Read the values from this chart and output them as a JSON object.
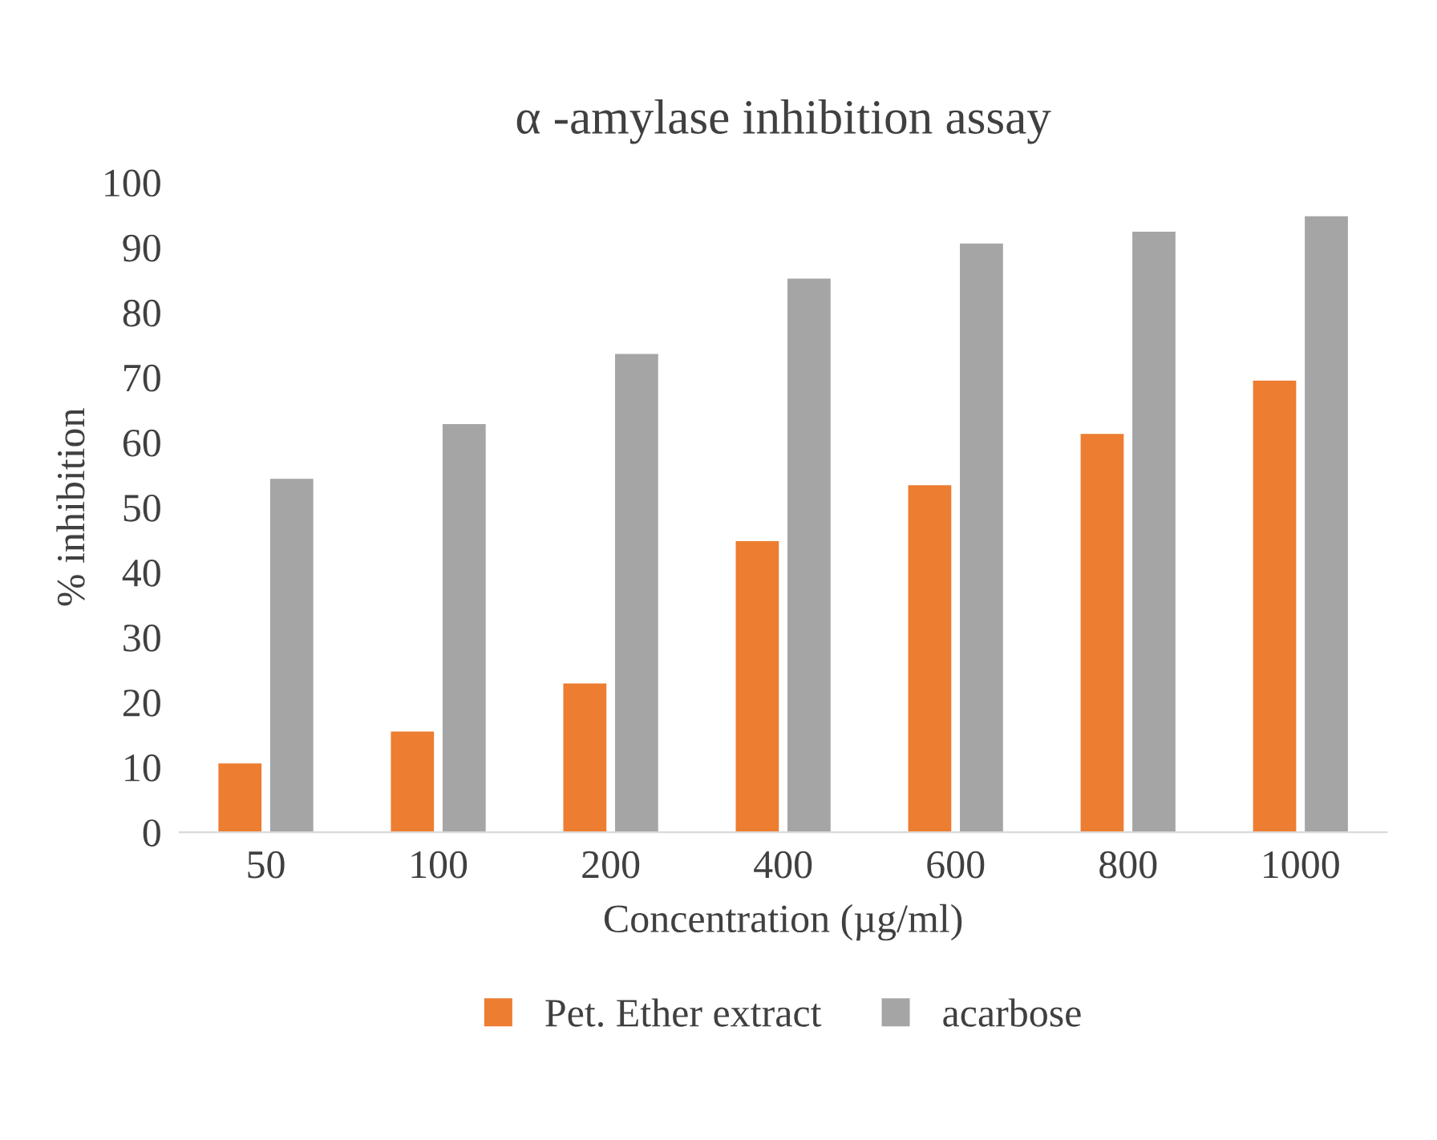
{
  "chart_data": {
    "type": "bar",
    "title": "α -amylase inhibition assay",
    "xlabel": "Concentration (µg/ml)",
    "ylabel": "% inhibition",
    "categories": [
      "50",
      "100",
      "200",
      "400",
      "600",
      "800",
      "1000"
    ],
    "series": [
      {
        "name": "Pet. Ether extract",
        "color": "#ed7d31",
        "values": [
          10.6,
          15.5,
          22.9,
          44.8,
          53.4,
          61.3,
          69.5
        ]
      },
      {
        "name": "acarbose",
        "color": "#a5a5a5",
        "values": [
          54.4,
          62.8,
          73.6,
          85.2,
          90.6,
          92.4,
          94.8
        ]
      }
    ],
    "ylim": [
      0,
      100
    ],
    "yticks": [
      0,
      10,
      20,
      30,
      40,
      50,
      60,
      70,
      80,
      90,
      100
    ],
    "grid": false,
    "legend": "bottom"
  }
}
